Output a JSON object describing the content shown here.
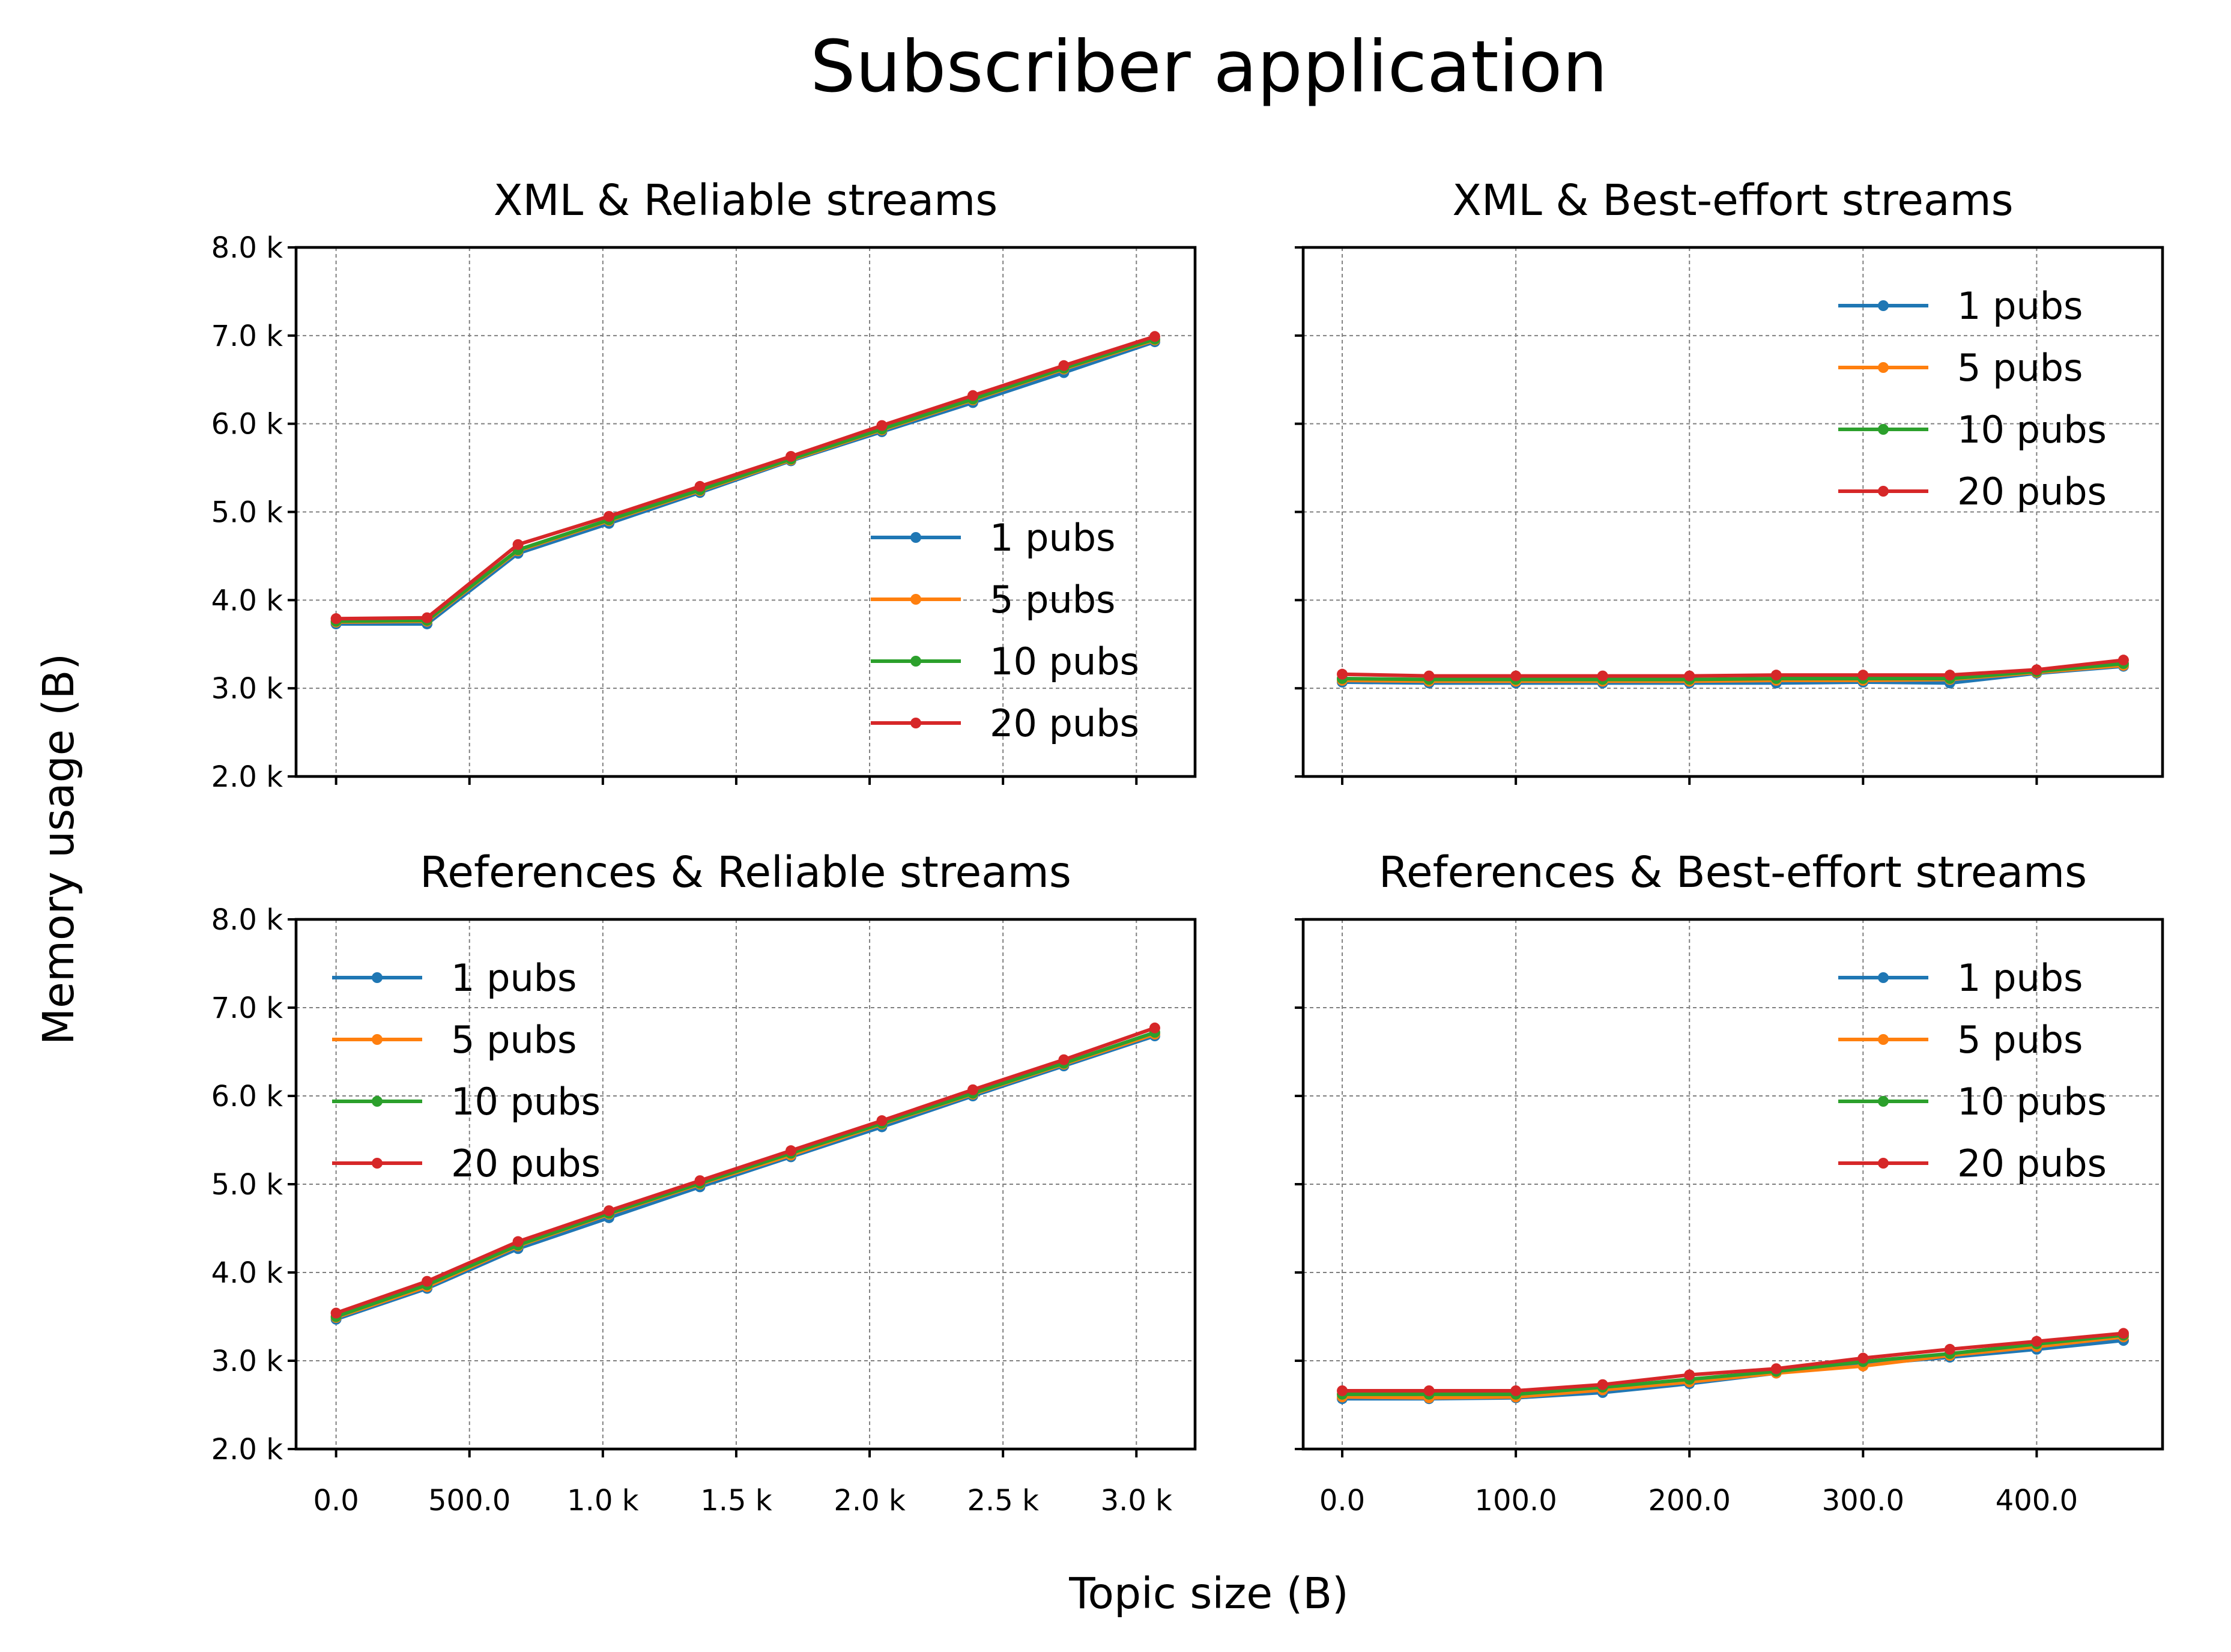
{
  "title": "Subscriber application",
  "xlabel": "Topic size (B)",
  "ylabel": "Memory usage (B)",
  "colors": {
    "1 pubs": "#1f77b4",
    "5 pubs": "#ff7f0e",
    "10 pubs": "#2ca02c",
    "20 pubs": "#d62728"
  },
  "chart_data": [
    {
      "type": "line",
      "title": "XML & Reliable streams",
      "x": [
        0,
        341,
        682,
        1023,
        1364,
        1705,
        2046,
        2387,
        2728,
        3069
      ],
      "xlim": [
        -150,
        3220
      ],
      "ylim": [
        2000,
        8000
      ],
      "xticks": [
        0,
        500,
        1000,
        1500,
        2000,
        2500,
        3000
      ],
      "xtick_labels": [
        "0.0",
        "500.0",
        "1.0 k",
        "1.5 k",
        "2.0 k",
        "2.5 k",
        "3.0 k"
      ],
      "yticks": [
        2000,
        3000,
        4000,
        5000,
        6000,
        7000,
        8000
      ],
      "ytick_labels": [
        "2.0 k",
        "3.0 k",
        "4.0 k",
        "5.0 k",
        "6.0 k",
        "7.0 k",
        "8.0 k"
      ],
      "show_xtick_labels": false,
      "show_ytick_labels": true,
      "grid": true,
      "legend": "lower-right",
      "series": [
        {
          "name": "1 pubs",
          "values": [
            3730,
            3730,
            4530,
            4870,
            5220,
            5580,
            5910,
            6240,
            6580,
            6930
          ]
        },
        {
          "name": "5 pubs",
          "values": [
            3750,
            3760,
            4560,
            4900,
            5240,
            5590,
            5930,
            6270,
            6620,
            6950
          ]
        },
        {
          "name": "10 pubs",
          "values": [
            3760,
            3770,
            4570,
            4910,
            5250,
            5600,
            5940,
            6280,
            6630,
            6960
          ]
        },
        {
          "name": "20 pubs",
          "values": [
            3790,
            3800,
            4630,
            4950,
            5290,
            5630,
            5980,
            6320,
            6660,
            6990
          ]
        }
      ]
    },
    {
      "type": "line",
      "title": "XML & Best-effort streams",
      "x": [
        0,
        50,
        100,
        150,
        200,
        250,
        300,
        350,
        400,
        450
      ],
      "xlim": [
        -22.5,
        472.5
      ],
      "ylim": [
        2000,
        8000
      ],
      "xticks": [
        0,
        100,
        200,
        300,
        400
      ],
      "xtick_labels": [
        "0.0",
        "100.0",
        "200.0",
        "300.0",
        "400.0"
      ],
      "yticks": [
        2000,
        3000,
        4000,
        5000,
        6000,
        7000,
        8000
      ],
      "ytick_labels": [
        "2.0 k",
        "3.0 k",
        "4.0 k",
        "5.0 k",
        "6.0 k",
        "7.0 k",
        "8.0 k"
      ],
      "show_xtick_labels": false,
      "show_ytick_labels": false,
      "grid": true,
      "legend": "upper-right",
      "series": [
        {
          "name": "1 pubs",
          "values": [
            3070,
            3060,
            3060,
            3060,
            3060,
            3060,
            3070,
            3060,
            3170,
            3250
          ]
        },
        {
          "name": "5 pubs",
          "values": [
            3090,
            3080,
            3080,
            3080,
            3080,
            3090,
            3090,
            3100,
            3180,
            3260
          ]
        },
        {
          "name": "10 pubs",
          "values": [
            3110,
            3100,
            3100,
            3100,
            3100,
            3110,
            3110,
            3110,
            3190,
            3280
          ]
        },
        {
          "name": "20 pubs",
          "values": [
            3160,
            3140,
            3140,
            3140,
            3140,
            3150,
            3150,
            3150,
            3210,
            3320
          ]
        }
      ]
    },
    {
      "type": "line",
      "title": "References & Reliable streams",
      "x": [
        0,
        341,
        682,
        1023,
        1364,
        1705,
        2046,
        2387,
        2728,
        3069
      ],
      "xlim": [
        -150,
        3220
      ],
      "ylim": [
        2000,
        8000
      ],
      "xticks": [
        0,
        500,
        1000,
        1500,
        2000,
        2500,
        3000
      ],
      "xtick_labels": [
        "0.0",
        "500.0",
        "1.0 k",
        "1.5 k",
        "2.0 k",
        "2.5 k",
        "3.0 k"
      ],
      "yticks": [
        2000,
        3000,
        4000,
        5000,
        6000,
        7000,
        8000
      ],
      "ytick_labels": [
        "2.0 k",
        "3.0 k",
        "4.0 k",
        "5.0 k",
        "6.0 k",
        "7.0 k",
        "8.0 k"
      ],
      "show_xtick_labels": true,
      "show_ytick_labels": true,
      "grid": true,
      "legend": "upper-left",
      "series": [
        {
          "name": "1 pubs",
          "values": [
            3470,
            3820,
            4270,
            4620,
            4970,
            5310,
            5650,
            6000,
            6340,
            6680
          ]
        },
        {
          "name": "5 pubs",
          "values": [
            3490,
            3840,
            4300,
            4660,
            5000,
            5330,
            5680,
            6020,
            6360,
            6700
          ]
        },
        {
          "name": "10 pubs",
          "values": [
            3500,
            3860,
            4310,
            4670,
            5010,
            5350,
            5690,
            6030,
            6370,
            6720
          ]
        },
        {
          "name": "20 pubs",
          "values": [
            3540,
            3900,
            4350,
            4700,
            5040,
            5380,
            5720,
            6070,
            6410,
            6770
          ]
        }
      ]
    },
    {
      "type": "line",
      "title": "References & Best-effort streams",
      "x": [
        0,
        50,
        100,
        150,
        200,
        250,
        300,
        350,
        400,
        450
      ],
      "xlim": [
        -22.5,
        472.5
      ],
      "ylim": [
        2000,
        8000
      ],
      "xticks": [
        0,
        100,
        200,
        300,
        400
      ],
      "xtick_labels": [
        "0.0",
        "100.0",
        "200.0",
        "300.0",
        "400.0"
      ],
      "yticks": [
        2000,
        3000,
        4000,
        5000,
        6000,
        7000,
        8000
      ],
      "ytick_labels": [
        "2.0 k",
        "3.0 k",
        "4.0 k",
        "5.0 k",
        "6.0 k",
        "7.0 k",
        "8.0 k"
      ],
      "show_xtick_labels": true,
      "show_ytick_labels": false,
      "grid": true,
      "legend": "upper-right",
      "series": [
        {
          "name": "1 pubs",
          "values": [
            2570,
            2570,
            2580,
            2640,
            2740,
            2860,
            2960,
            3040,
            3130,
            3230
          ]
        },
        {
          "name": "5 pubs",
          "values": [
            2590,
            2580,
            2590,
            2670,
            2760,
            2860,
            2940,
            3060,
            3160,
            3270
          ]
        },
        {
          "name": "10 pubs",
          "values": [
            2620,
            2620,
            2620,
            2700,
            2790,
            2880,
            2990,
            3080,
            3190,
            3290
          ]
        },
        {
          "name": "20 pubs",
          "values": [
            2660,
            2660,
            2660,
            2730,
            2840,
            2910,
            3030,
            3130,
            3220,
            3310
          ]
        }
      ]
    }
  ]
}
